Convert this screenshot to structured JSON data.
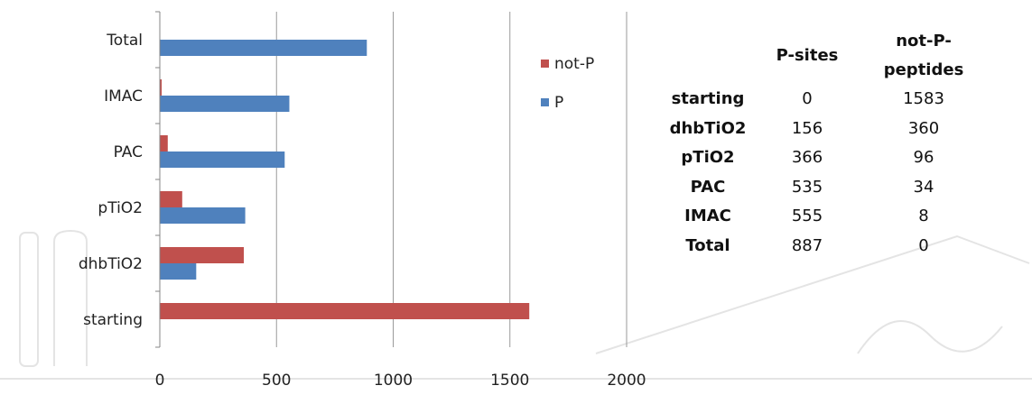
{
  "chart_data": {
    "type": "bar",
    "orientation": "horizontal",
    "categories": [
      "starting",
      "dhbTiO2",
      "pTiO2",
      "PAC",
      "IMAC",
      "Total"
    ],
    "series": [
      {
        "name": "P",
        "color": "#4f81bd",
        "values": [
          0,
          156,
          366,
          535,
          555,
          887
        ]
      },
      {
        "name": "not-P",
        "color": "#c0504d",
        "values": [
          1583,
          360,
          96,
          34,
          8,
          0
        ]
      }
    ],
    "xlim": [
      0,
      2000
    ],
    "xticks": [
      0,
      500,
      1000,
      1500,
      2000
    ],
    "grid": true,
    "legend_position": "right",
    "legend": [
      {
        "name": "not-P",
        "color": "#c0504d"
      },
      {
        "name": "P",
        "color": "#4f81bd"
      }
    ],
    "title": "",
    "xlabel": "",
    "ylabel": ""
  },
  "table": {
    "headers": [
      "",
      "P-sites",
      "not-P-peptides"
    ],
    "rows": [
      {
        "label": "starting",
        "p_sites": "0",
        "not_p_peptides": "1583"
      },
      {
        "label": "dhbTiO2",
        "p_sites": "156",
        "not_p_peptides": "360"
      },
      {
        "label": "pTiO2",
        "p_sites": "366",
        "not_p_peptides": "96"
      },
      {
        "label": "PAC",
        "p_sites": "535",
        "not_p_peptides": "34"
      },
      {
        "label": "IMAC",
        "p_sites": "555",
        "not_p_peptides": "8"
      },
      {
        "label": "Total",
        "p_sites": "887",
        "not_p_peptides": "0"
      }
    ]
  }
}
